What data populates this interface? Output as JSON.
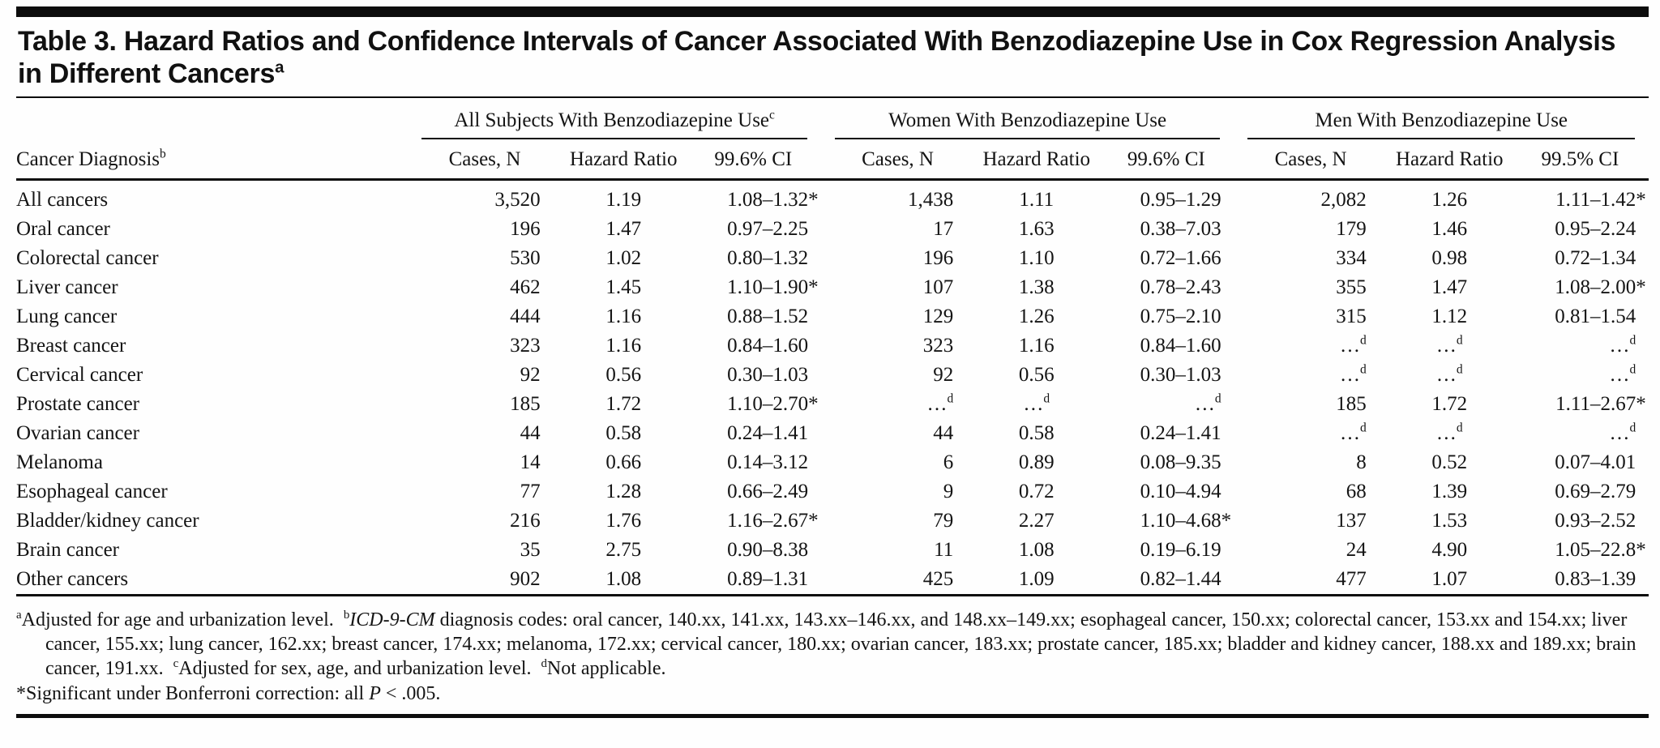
{
  "title": "Table 3. Hazard Ratios and Confidence Intervals of Cancer Associated With Benzodiazepine Use in Cox Regression Analysis in Different Cancers^a",
  "table": {
    "row_header": "Cancer Diagnosis^b",
    "groups": [
      {
        "label": "All Subjects With Benzodiazepine Use^c",
        "columns": [
          "Cases, N",
          "Hazard Ratio",
          "99.6% CI"
        ]
      },
      {
        "label": "Women With Benzodiazepine Use",
        "columns": [
          "Cases, N",
          "Hazard Ratio",
          "99.6% CI"
        ]
      },
      {
        "label": "Men With Benzodiazepine Use",
        "columns": [
          "Cases, N",
          "Hazard Ratio",
          "99.5% CI"
        ]
      }
    ],
    "rows": [
      [
        "All cancers",
        "3,520",
        "1.19",
        "1.08–1.32*",
        "1,438",
        "1.11",
        "0.95–1.29",
        "2,082",
        "1.26",
        "1.11–1.42*"
      ],
      [
        "Oral cancer",
        "196",
        "1.47",
        "0.97–2.25",
        "17",
        "1.63",
        "0.38–7.03",
        "179",
        "1.46",
        "0.95–2.24"
      ],
      [
        "Colorectal cancer",
        "530",
        "1.02",
        "0.80–1.32",
        "196",
        "1.10",
        "0.72–1.66",
        "334",
        "0.98",
        "0.72–1.34"
      ],
      [
        "Liver cancer",
        "462",
        "1.45",
        "1.10–1.90*",
        "107",
        "1.38",
        "0.78–2.43",
        "355",
        "1.47",
        "1.08–2.00*"
      ],
      [
        "Lung cancer",
        "444",
        "1.16",
        "0.88–1.52",
        "129",
        "1.26",
        "0.75–2.10",
        "315",
        "1.12",
        "0.81–1.54"
      ],
      [
        "Breast cancer",
        "323",
        "1.16",
        "0.84–1.60",
        "323",
        "1.16",
        "0.84–1.60",
        "…^d",
        "…^d",
        "…^d"
      ],
      [
        "Cervical cancer",
        "92",
        "0.56",
        "0.30–1.03",
        "92",
        "0.56",
        "0.30–1.03",
        "…^d",
        "…^d",
        "…^d"
      ],
      [
        "Prostate cancer",
        "185",
        "1.72",
        "1.10–2.70*",
        "…^d",
        "…^d",
        "…^d",
        "185",
        "1.72",
        "1.11–2.67*"
      ],
      [
        "Ovarian cancer",
        "44",
        "0.58",
        "0.24–1.41",
        "44",
        "0.58",
        "0.24–1.41",
        "…^d",
        "…^d",
        "…^d"
      ],
      [
        "Melanoma",
        "14",
        "0.66",
        "0.14–3.12",
        "6",
        "0.89",
        "0.08–9.35",
        "8",
        "0.52",
        "0.07–4.01"
      ],
      [
        "Esophageal cancer",
        "77",
        "1.28",
        "0.66–2.49",
        "9",
        "0.72",
        "0.10–4.94",
        "68",
        "1.39",
        "0.69–2.79"
      ],
      [
        "Bladder/kidney cancer",
        "216",
        "1.76",
        "1.16–2.67*",
        "79",
        "2.27",
        "1.10–4.68*",
        "137",
        "1.53",
        "0.93–2.52"
      ],
      [
        "Brain cancer",
        "35",
        "2.75",
        "0.90–8.38",
        "11",
        "1.08",
        "0.19–6.19",
        "24",
        "4.90",
        "1.05–22.8*"
      ],
      [
        "Other cancers",
        "902",
        "1.08",
        "0.89–1.31",
        "425",
        "1.09",
        "0.82–1.44",
        "477",
        "1.07",
        "0.83–1.39"
      ]
    ]
  },
  "footnotes": [
    {
      "id": "general",
      "flush": false,
      "text": "^aAdjusted for age and urbanization level. ^b_ICD-9-CM_ diagnosis codes: oral cancer, 140.xx, 141.xx, 143.xx–146.xx, and 148.xx–149.xx; esophageal cancer, 150.xx; colorectal cancer, 153.xx and 154.xx; liver cancer, 155.xx; lung cancer, 162.xx; breast cancer, 174.xx; melanoma, 172.xx; cervical cancer, 180.xx; ovarian cancer, 183.xx; prostate cancer, 185.xx; bladder and kidney cancer, 188.xx and 189.xx; brain cancer, 191.xx. ^cAdjusted for sex, age, and urbanization level. ^dNot applicable."
    },
    {
      "id": "significance",
      "flush": true,
      "text": "*Significant under Bonferroni correction: all _P_ < .005."
    }
  ]
}
